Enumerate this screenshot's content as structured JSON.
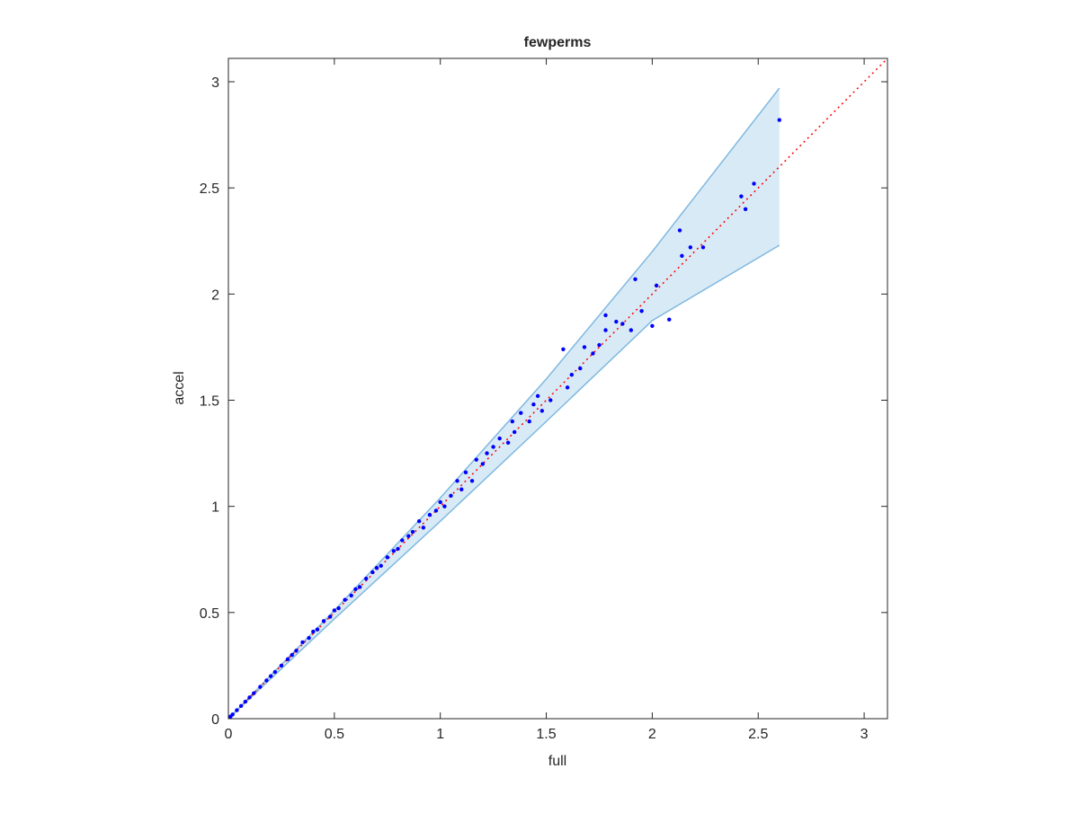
{
  "chart_data": {
    "type": "scatter",
    "title": "fewperms",
    "xlabel": "full",
    "ylabel": "accel",
    "xlim": [
      0,
      3.11
    ],
    "ylim": [
      0,
      3.11
    ],
    "xticks": [
      0,
      0.5,
      1,
      1.5,
      2,
      2.5,
      3
    ],
    "yticks": [
      0,
      0.5,
      1,
      1.5,
      2,
      2.5,
      3
    ],
    "band": {
      "color": "#7fb8e0",
      "x": [
        0,
        0.5,
        1,
        1.5,
        2,
        2.6
      ],
      "lower": [
        0,
        0.47,
        0.93,
        1.4,
        1.875,
        2.23
      ],
      "upper": [
        0,
        0.51,
        1.04,
        1.6,
        2.2,
        2.97
      ]
    },
    "reference_line": {
      "color": "#ff0000",
      "x": [
        0,
        3.11
      ],
      "y": [
        0,
        3.11
      ]
    },
    "series": [
      {
        "color": "#0000ff",
        "x": [
          2.6,
          2.48,
          2.44,
          2.42,
          2.24,
          2.18,
          2.14,
          2.13,
          2.08,
          2.02,
          2.0,
          1.92,
          1.95,
          1.9,
          1.86,
          1.83,
          1.78,
          1.78,
          1.75,
          1.72,
          1.68,
          1.66,
          1.62,
          1.58,
          1.6,
          1.52,
          1.48,
          1.46,
          1.44,
          1.42,
          1.38,
          1.35,
          1.34,
          1.32,
          1.28,
          1.25,
          1.22,
          1.2,
          1.17,
          1.15,
          1.12,
          1.1,
          1.08,
          1.05,
          1.02,
          1.0,
          0.98,
          0.95,
          0.92,
          0.9,
          0.87,
          0.85,
          0.82,
          0.8,
          0.78,
          0.75,
          0.72,
          0.7,
          0.68,
          0.65,
          0.62,
          0.6,
          0.58,
          0.55,
          0.52,
          0.5,
          0.48,
          0.45,
          0.42,
          0.4,
          0.38,
          0.35,
          0.32,
          0.3,
          0.28,
          0.25,
          0.22,
          0.2,
          0.18,
          0.15,
          0.12,
          0.1,
          0.08,
          0.06,
          0.04,
          0.02,
          0.01
        ],
        "values": [
          2.82,
          2.52,
          2.4,
          2.46,
          2.22,
          2.22,
          2.18,
          2.3,
          1.88,
          2.04,
          1.85,
          2.07,
          1.92,
          1.83,
          1.86,
          1.87,
          1.9,
          1.83,
          1.76,
          1.72,
          1.75,
          1.65,
          1.62,
          1.74,
          1.56,
          1.5,
          1.45,
          1.52,
          1.48,
          1.4,
          1.44,
          1.35,
          1.4,
          1.3,
          1.32,
          1.28,
          1.25,
          1.2,
          1.22,
          1.12,
          1.16,
          1.08,
          1.12,
          1.05,
          1.0,
          1.02,
          0.98,
          0.96,
          0.9,
          0.93,
          0.88,
          0.86,
          0.84,
          0.8,
          0.79,
          0.76,
          0.72,
          0.71,
          0.69,
          0.66,
          0.62,
          0.61,
          0.58,
          0.56,
          0.52,
          0.51,
          0.48,
          0.46,
          0.42,
          0.41,
          0.38,
          0.36,
          0.32,
          0.3,
          0.28,
          0.25,
          0.22,
          0.2,
          0.18,
          0.15,
          0.12,
          0.1,
          0.08,
          0.06,
          0.04,
          0.02,
          0.01
        ]
      }
    ]
  }
}
